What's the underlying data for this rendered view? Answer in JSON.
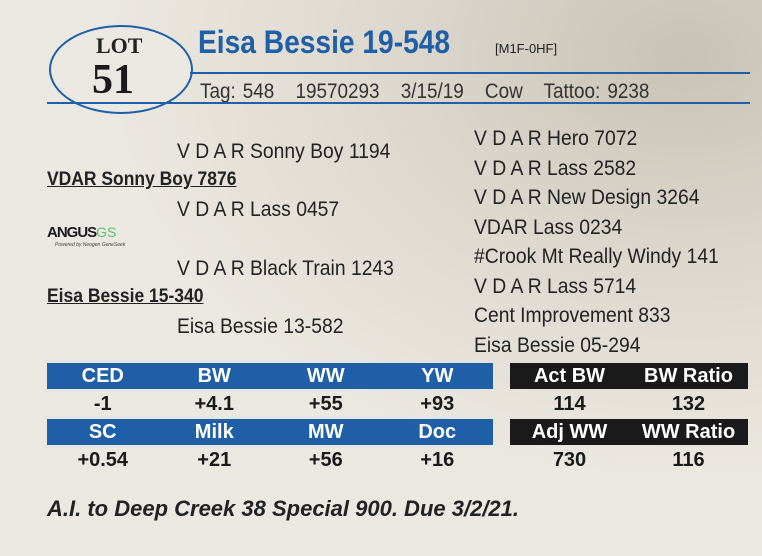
{
  "lot": {
    "label": "LOT",
    "number": "51"
  },
  "animal": {
    "name": "Eisa Bessie 19-548",
    "code": "[M1F-0HF]",
    "info": "Tag: 548   19570293   3/15/19   Cow   Tattoo: 9238"
  },
  "pedigree": {
    "sire_sire": "V D A R Sonny Boy 1194",
    "sire": "VDAR Sonny Boy 7876",
    "sire_dam": "V D A R Lass 0457",
    "dam_sire": "V D A R Black Train 1243",
    "dam": "Eisa Bessie 15-340",
    "dam_dam": "Eisa Bessie 13-582",
    "great": [
      "V D A R Hero 7072",
      "V D A R Lass 2582",
      "V D A R New Design 3264",
      "VDAR Lass 0234",
      "#Crook Mt Really Windy 141",
      "V D A R Lass 5714",
      "Cent Improvement 833",
      "Eisa Bessie 05-294"
    ]
  },
  "logo": {
    "main": "ANGUS",
    "accent": "GS",
    "tagline": "Powered by Neogen GeneSeek"
  },
  "epd": {
    "headers1": [
      "CED",
      "BW",
      "WW",
      "YW"
    ],
    "values1": [
      "-1",
      "+4.1",
      "+55",
      "+93"
    ],
    "headers2": [
      "SC",
      "Milk",
      "MW",
      "Doc"
    ],
    "values2": [
      "+0.54",
      "+21",
      "+56",
      "+16"
    ]
  },
  "perf": {
    "headers1": [
      "Act BW",
      "BW Ratio"
    ],
    "values1": [
      "114",
      "132"
    ],
    "headers2": [
      "Adj WW",
      "WW Ratio"
    ],
    "values2": [
      "730",
      "116"
    ]
  },
  "footer": "A.I. to Deep Creek 38 Special 900. Due 3/2/21."
}
